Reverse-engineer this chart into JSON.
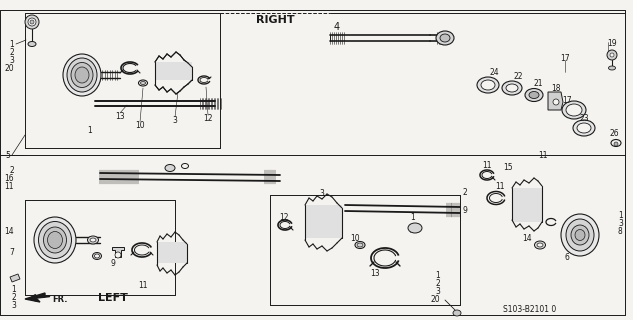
{
  "bg_color": "#f5f3ef",
  "line_color": "#1a1a1a",
  "title_right": "RIGHT",
  "title_left": "LEFT",
  "label_fr": "FR.",
  "label_s103": "S103-B2101 0",
  "fig_width": 6.33,
  "fig_height": 3.2,
  "dpi": 100
}
